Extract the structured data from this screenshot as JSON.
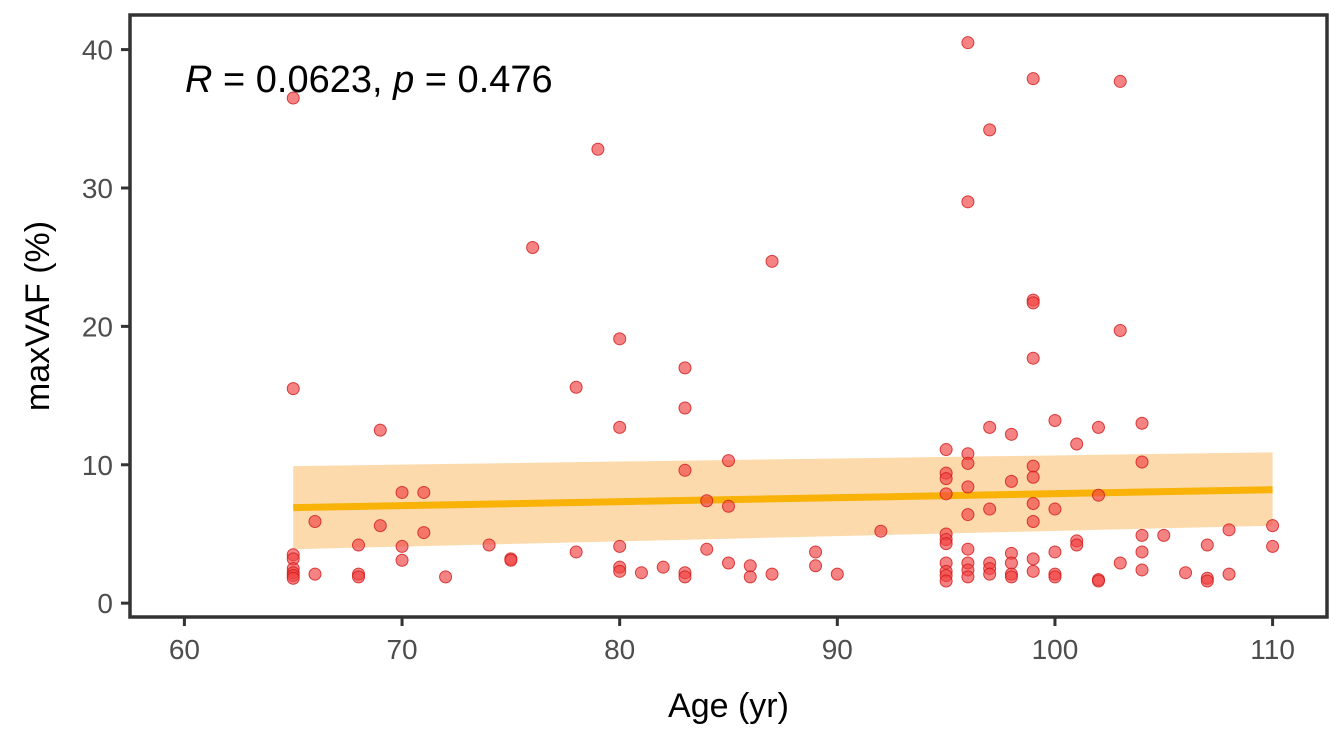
{
  "chart_data": {
    "type": "scatter",
    "xlabel": "Age (yr)",
    "ylabel": "maxVAF (%)",
    "xlim": [
      57.5,
      112.5
    ],
    "ylim": [
      -1,
      42.5
    ],
    "xticks": [
      60,
      70,
      80,
      90,
      100,
      110
    ],
    "yticks": [
      0,
      10,
      20,
      30,
      40
    ],
    "grid": false,
    "annotation": {
      "r_symbol": "R",
      "r_text": " = 0.0623, ",
      "p_symbol": "p",
      "p_text": " = 0.476"
    },
    "colors": {
      "points": "#f04040",
      "point_stroke": "#d01818",
      "fit_line": "#f9b208",
      "confidence_band": "#fdd49e",
      "axis": "#333333"
    },
    "fit": {
      "x": [
        65,
        110
      ],
      "y": [
        6.9,
        8.2
      ],
      "lower": [
        3.9,
        5.6
      ],
      "upper": [
        9.9,
        10.9
      ]
    },
    "points": [
      [
        65,
        36.5
      ],
      [
        65,
        15.5
      ],
      [
        65,
        3.5
      ],
      [
        65,
        3.2
      ],
      [
        65,
        2.5
      ],
      [
        65,
        2.2
      ],
      [
        65,
        2.0
      ],
      [
        65,
        1.8
      ],
      [
        66,
        5.9
      ],
      [
        66,
        2.1
      ],
      [
        68,
        4.2
      ],
      [
        68,
        2.1
      ],
      [
        68,
        1.9
      ],
      [
        69,
        12.5
      ],
      [
        69,
        5.6
      ],
      [
        70,
        8.0
      ],
      [
        70,
        4.1
      ],
      [
        70,
        3.1
      ],
      [
        71,
        8.0
      ],
      [
        71,
        5.1
      ],
      [
        72,
        1.9
      ],
      [
        74,
        4.2
      ],
      [
        75,
        3.2
      ],
      [
        75,
        3.1
      ],
      [
        76,
        25.7
      ],
      [
        78,
        15.6
      ],
      [
        78,
        3.7
      ],
      [
        79,
        32.8
      ],
      [
        80,
        19.1
      ],
      [
        80,
        12.7
      ],
      [
        80,
        4.1
      ],
      [
        80,
        2.6
      ],
      [
        80,
        2.3
      ],
      [
        81,
        2.2
      ],
      [
        82,
        2.6
      ],
      [
        83,
        17.0
      ],
      [
        83,
        14.1
      ],
      [
        83,
        9.6
      ],
      [
        83,
        2.2
      ],
      [
        83,
        1.9
      ],
      [
        84,
        7.4
      ],
      [
        84,
        3.9
      ],
      [
        85,
        10.3
      ],
      [
        85,
        7.0
      ],
      [
        85,
        2.9
      ],
      [
        86,
        2.7
      ],
      [
        86,
        1.9
      ],
      [
        87,
        24.7
      ],
      [
        87,
        2.1
      ],
      [
        89,
        3.7
      ],
      [
        89,
        2.7
      ],
      [
        90,
        2.1
      ],
      [
        92,
        5.2
      ],
      [
        95,
        11.1
      ],
      [
        95,
        9.4
      ],
      [
        95,
        9.0
      ],
      [
        95,
        7.9
      ],
      [
        95,
        5.0
      ],
      [
        95,
        4.6
      ],
      [
        95,
        4.3
      ],
      [
        95,
        2.9
      ],
      [
        95,
        2.3
      ],
      [
        95,
        2.0
      ],
      [
        95,
        1.6
      ],
      [
        96,
        40.5
      ],
      [
        96,
        29.0
      ],
      [
        96,
        10.8
      ],
      [
        96,
        10.1
      ],
      [
        96,
        8.4
      ],
      [
        96,
        6.4
      ],
      [
        96,
        3.9
      ],
      [
        96,
        2.9
      ],
      [
        96,
        2.4
      ],
      [
        96,
        1.9
      ],
      [
        97,
        34.2
      ],
      [
        97,
        12.7
      ],
      [
        97,
        6.8
      ],
      [
        97,
        2.9
      ],
      [
        97,
        2.5
      ],
      [
        97,
        2.1
      ],
      [
        98,
        12.2
      ],
      [
        98,
        8.8
      ],
      [
        98,
        3.6
      ],
      [
        98,
        2.9
      ],
      [
        98,
        2.1
      ],
      [
        98,
        1.9
      ],
      [
        99,
        37.9
      ],
      [
        99,
        21.9
      ],
      [
        99,
        21.7
      ],
      [
        99,
        17.7
      ],
      [
        99,
        9.9
      ],
      [
        99,
        9.1
      ],
      [
        99,
        7.2
      ],
      [
        99,
        5.9
      ],
      [
        99,
        3.2
      ],
      [
        99,
        2.3
      ],
      [
        100,
        13.2
      ],
      [
        100,
        6.8
      ],
      [
        100,
        3.7
      ],
      [
        100,
        2.1
      ],
      [
        100,
        1.9
      ],
      [
        101,
        11.5
      ],
      [
        101,
        4.5
      ],
      [
        101,
        4.2
      ],
      [
        102,
        12.7
      ],
      [
        102,
        7.8
      ],
      [
        102,
        1.7
      ],
      [
        102,
        1.6
      ],
      [
        103,
        37.7
      ],
      [
        103,
        19.7
      ],
      [
        103,
        2.9
      ],
      [
        104,
        13.0
      ],
      [
        104,
        10.2
      ],
      [
        104,
        4.9
      ],
      [
        104,
        3.7
      ],
      [
        104,
        2.4
      ],
      [
        105,
        4.9
      ],
      [
        106,
        2.2
      ],
      [
        107,
        4.2
      ],
      [
        107,
        1.8
      ],
      [
        107,
        1.6
      ],
      [
        108,
        5.3
      ],
      [
        108,
        2.1
      ],
      [
        110,
        5.6
      ],
      [
        110,
        4.1
      ]
    ]
  }
}
